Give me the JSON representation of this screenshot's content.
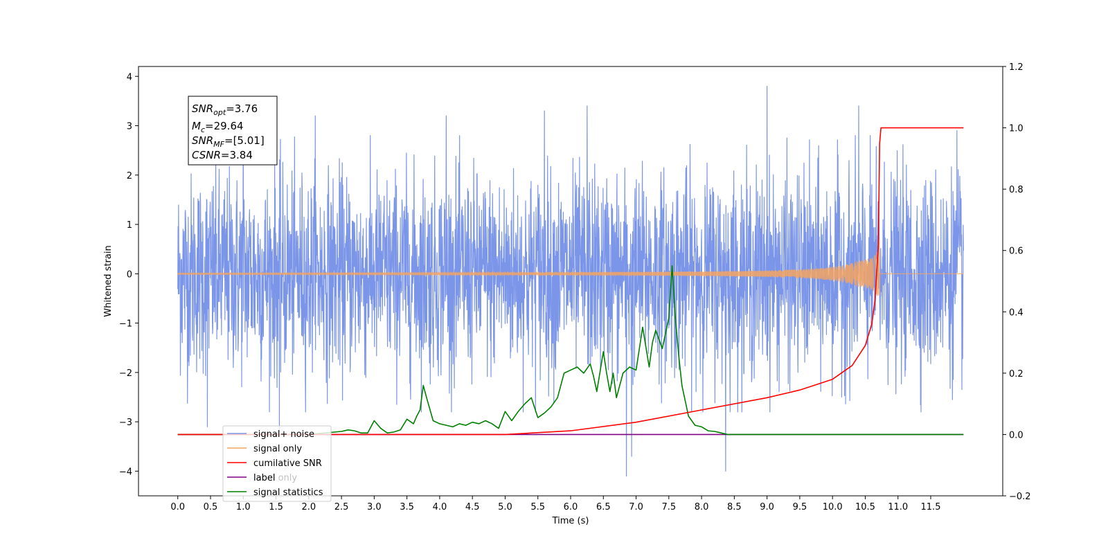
{
  "chart_data": {
    "type": "line",
    "xlabel": "Time (s)",
    "ylabel": "Whitened strain",
    "ylabel_right": "",
    "xlim": [
      -0.6,
      12.6
    ],
    "ylim": [
      -4.5,
      4.2
    ],
    "ylim_right": [
      -0.2,
      1.2
    ],
    "x_ticks": [
      "0.0",
      "0.5",
      "1.0",
      "1.5",
      "2.0",
      "2.5",
      "3.0",
      "3.5",
      "4.0",
      "4.5",
      "5.0",
      "5.5",
      "6.0",
      "6.5",
      "7.0",
      "7.5",
      "8.0",
      "8.5",
      "9.0",
      "9.5",
      "10.0",
      "10.5",
      "11.0",
      "11.5"
    ],
    "y_ticks": [
      "−4",
      "−3",
      "−2",
      "−1",
      "0",
      "1",
      "2",
      "3",
      "4"
    ],
    "y_ticks_right": [
      "−0.2",
      "0.0",
      "0.2",
      "0.4",
      "0.6",
      "0.8",
      "1.0",
      "1.2"
    ],
    "grid": false,
    "legend_placement": "lower-left",
    "annotation": [
      {
        "name": "SNR",
        "sub": "opt",
        "value": "=3.76"
      },
      {
        "name": "M",
        "sub": "c",
        "value": "=29.64"
      },
      {
        "name": "SNR",
        "sub": "MF",
        "value": "=[5.01]"
      },
      {
        "name": "CSNR",
        "sub": "",
        "value": "=3.84"
      }
    ],
    "series": [
      {
        "name": "signal+ noise",
        "color": "#7b95e8",
        "axis": "left",
        "x_range": [
          0,
          12.0
        ],
        "std": 1.0,
        "peaks": [
          [
            1.0,
            3.3
          ],
          [
            2.1,
            3.2
          ],
          [
            4.1,
            3.2
          ],
          [
            5.6,
            3.3
          ],
          [
            6.25,
            3.4
          ],
          [
            9.0,
            3.8
          ],
          [
            10.4,
            3.4
          ],
          [
            11.9,
            2.9
          ],
          [
            6.85,
            -4.1
          ],
          [
            6.93,
            -3.7
          ],
          [
            8.37,
            -4.0
          ],
          [
            0.45,
            -3.1
          ],
          [
            1.55,
            -3.2
          ]
        ]
      },
      {
        "name": "signal only",
        "color": "#f4a460",
        "axis": "left",
        "merger_time": 10.72,
        "peak_amplitude": 0.85
      },
      {
        "name": "cumilative SNR",
        "color": "#ff0000",
        "axis": "right",
        "x": [
          0,
          5.0,
          6.0,
          7.0,
          8.0,
          9.0,
          9.5,
          10.0,
          10.3,
          10.5,
          10.6,
          10.65,
          10.7,
          10.72,
          10.74,
          12.0
        ],
        "values": [
          0,
          0.0,
          0.012,
          0.04,
          0.08,
          0.12,
          0.145,
          0.18,
          0.225,
          0.29,
          0.36,
          0.44,
          0.62,
          0.95,
          1.0,
          1.0
        ]
      },
      {
        "name": "label",
        "color": "#800080",
        "axis": "right",
        "x": [
          0,
          12.0
        ],
        "values": [
          0,
          0
        ]
      },
      {
        "name": "label only",
        "color": "",
        "axis": "right"
      },
      {
        "name": "signal statistics",
        "color": "#008000",
        "axis": "right",
        "x": [
          0,
          2.0,
          2.5,
          2.6,
          2.7,
          2.8,
          2.9,
          3.0,
          3.1,
          3.2,
          3.3,
          3.4,
          3.5,
          3.6,
          3.65,
          3.7,
          3.75,
          3.8,
          3.9,
          4.0,
          4.1,
          4.2,
          4.3,
          4.4,
          4.5,
          4.6,
          4.7,
          4.8,
          4.9,
          5.0,
          5.1,
          5.2,
          5.3,
          5.4,
          5.5,
          5.6,
          5.7,
          5.8,
          5.9,
          6.0,
          6.1,
          6.2,
          6.3,
          6.35,
          6.4,
          6.5,
          6.55,
          6.6,
          6.65,
          6.7,
          6.8,
          6.9,
          7.0,
          7.1,
          7.2,
          7.25,
          7.3,
          7.4,
          7.5,
          7.55,
          7.6,
          7.65,
          7.7,
          7.8,
          7.9,
          8.0,
          8.1,
          8.2,
          8.3,
          8.4,
          12.0
        ],
        "values": [
          0,
          0.0,
          0.01,
          0.015,
          0.012,
          0.005,
          0.005,
          0.045,
          0.02,
          0.005,
          0.008,
          0.015,
          0.05,
          0.035,
          0.06,
          0.08,
          0.16,
          0.12,
          0.045,
          0.035,
          0.03,
          0.025,
          0.035,
          0.03,
          0.04,
          0.035,
          0.045,
          0.035,
          0.02,
          0.075,
          0.045,
          0.075,
          0.1,
          0.12,
          0.055,
          0.07,
          0.09,
          0.12,
          0.2,
          0.21,
          0.22,
          0.2,
          0.23,
          0.19,
          0.14,
          0.27,
          0.2,
          0.14,
          0.2,
          0.12,
          0.2,
          0.22,
          0.21,
          0.35,
          0.22,
          0.3,
          0.34,
          0.28,
          0.38,
          0.55,
          0.38,
          0.26,
          0.16,
          0.06,
          0.03,
          0.025,
          0.012,
          0.01,
          0.005,
          0.0,
          0.0
        ]
      }
    ]
  }
}
